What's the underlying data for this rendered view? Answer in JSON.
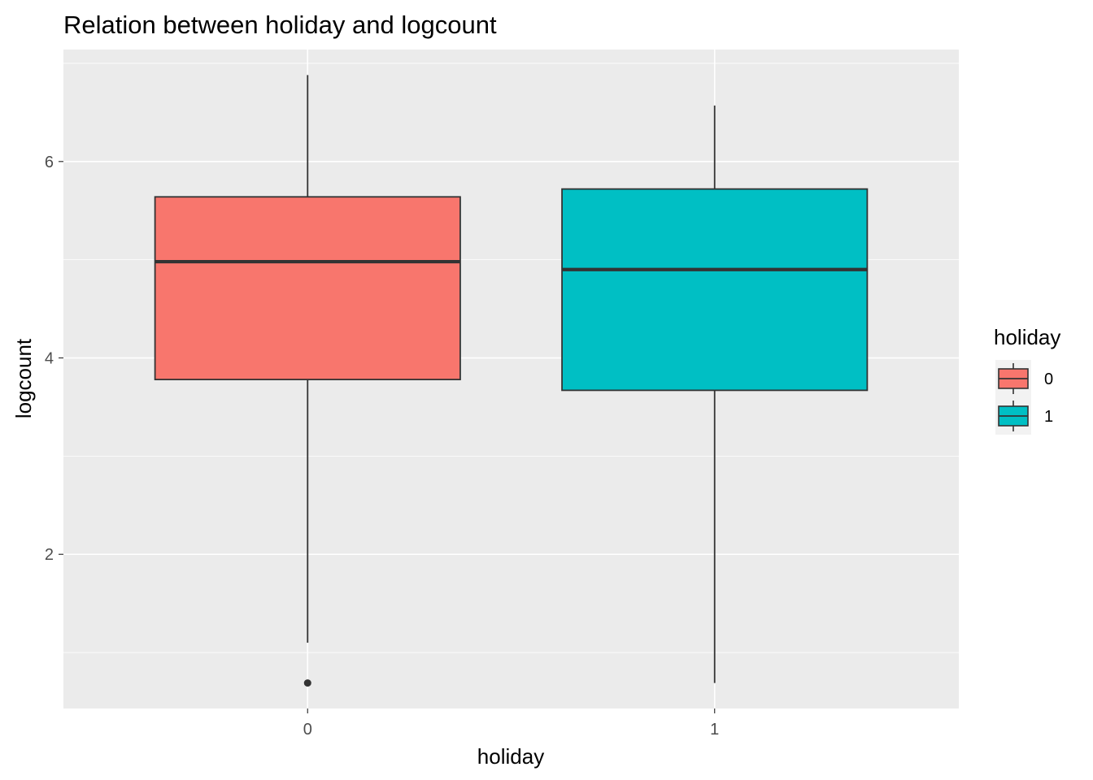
{
  "chart_data": {
    "type": "boxplot",
    "title": "Relation between holiday and logcount",
    "xlabel": "holiday",
    "ylabel": "logcount",
    "categories": [
      "0",
      "1"
    ],
    "boxes": [
      {
        "category": "0",
        "whisker_low": 1.1,
        "q1": 3.78,
        "median": 4.98,
        "q3": 5.64,
        "whisker_high": 6.88,
        "outliers": [
          0.69
        ],
        "color": "#F8766D"
      },
      {
        "category": "1",
        "whisker_low": 0.69,
        "q1": 3.67,
        "median": 4.9,
        "q3": 5.72,
        "whisker_high": 6.57,
        "outliers": [],
        "color": "#00BFC4"
      }
    ],
    "y_ticks": [
      2,
      4,
      6
    ],
    "y_tick_labels": [
      "2",
      "4",
      "6"
    ],
    "ylim": [
      0.43,
      7.14
    ],
    "grid": true,
    "legend": {
      "title": "holiday",
      "position": "right",
      "entries": [
        {
          "label": "0",
          "color": "#F8766D"
        },
        {
          "label": "1",
          "color": "#00BFC4"
        }
      ]
    }
  }
}
